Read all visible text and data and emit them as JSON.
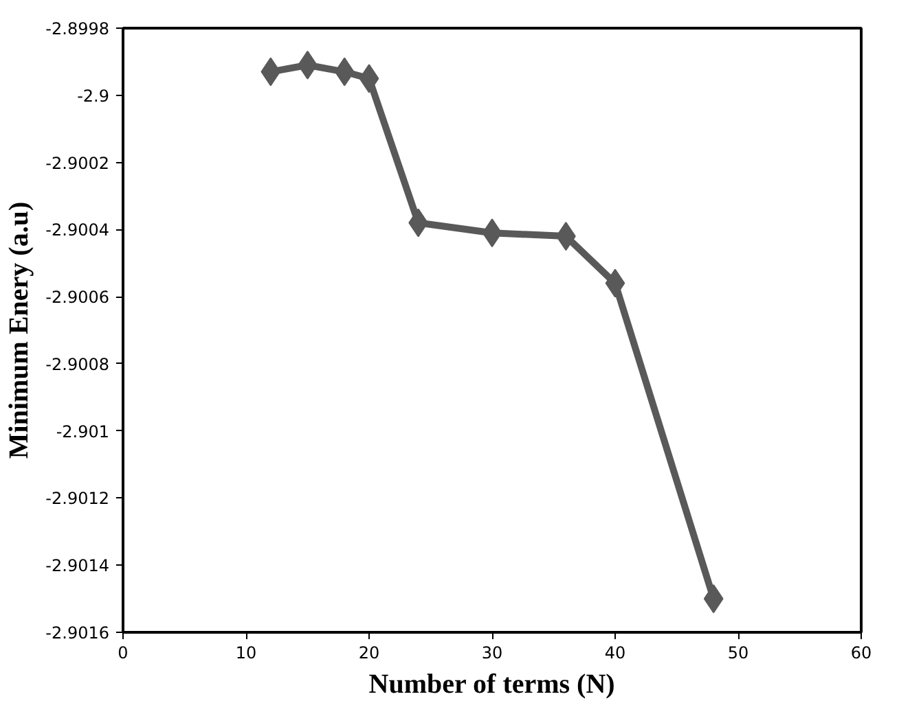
{
  "chart_data": {
    "type": "line",
    "xlabel": "Number of terms (N)",
    "ylabel": "Minimum Enery (a.u)",
    "x": [
      12,
      15,
      18,
      20,
      24,
      30,
      36,
      40,
      48
    ],
    "series": [
      {
        "color": "#595959",
        "values": [
          -2.89993,
          -2.89991,
          -2.89993,
          -2.89995,
          -2.90038,
          -2.90041,
          -2.90042,
          -2.90056,
          -2.9015
        ]
      }
    ],
    "xlim": [
      0,
      60
    ],
    "xticks": [
      0,
      10,
      20,
      30,
      40,
      50,
      60
    ],
    "ylim": [
      -2.9016,
      -2.8998
    ],
    "yticks": [
      -2.9016,
      -2.9014,
      -2.9012,
      -2.901,
      -2.9008,
      -2.9006,
      -2.9004,
      -2.9002,
      -2.9,
      -2.8998
    ],
    "marker": "diamond",
    "line_style": "solid",
    "grid": false
  }
}
